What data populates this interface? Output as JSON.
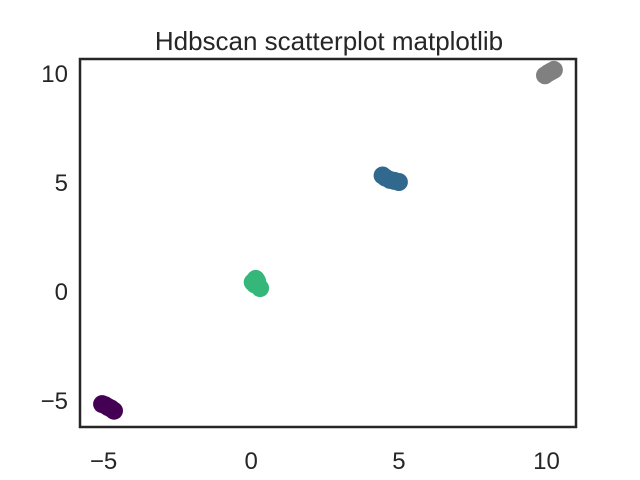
{
  "chart_data": {
    "type": "scatter",
    "title": "Hdbscan scatterplot matplotlib",
    "xlabel": "",
    "ylabel": "",
    "xlim": [
      -5.8,
      11.0
    ],
    "ylim": [
      -6.2,
      10.7
    ],
    "xticks": [
      -5,
      0,
      5,
      10
    ],
    "xtick_labels": [
      "−5",
      "0",
      "5",
      "10"
    ],
    "yticks": [
      -5,
      0,
      5,
      10
    ],
    "ytick_labels": [
      "−5",
      "0",
      "5",
      "10"
    ],
    "grid": false,
    "legend": "none",
    "series": [
      {
        "color": "#440154",
        "x": [
          -5.05,
          -4.95,
          -4.85,
          -4.75,
          -4.65
        ],
        "y": [
          -5.15,
          -5.2,
          -5.28,
          -5.35,
          -5.45
        ]
      },
      {
        "color": "#35b779",
        "x": [
          0.05,
          0.15,
          0.12,
          0.3,
          0.2
        ],
        "y": [
          0.45,
          0.6,
          0.35,
          0.18,
          0.5
        ]
      },
      {
        "color": "#31688e",
        "x": [
          4.45,
          4.55,
          4.7,
          4.85,
          5.0
        ],
        "y": [
          5.35,
          5.25,
          5.15,
          5.1,
          5.05
        ]
      },
      {
        "color": "#808080",
        "x": [
          9.95,
          10.05,
          10.15,
          10.25
        ],
        "y": [
          9.95,
          10.05,
          10.12,
          10.2
        ]
      }
    ]
  }
}
